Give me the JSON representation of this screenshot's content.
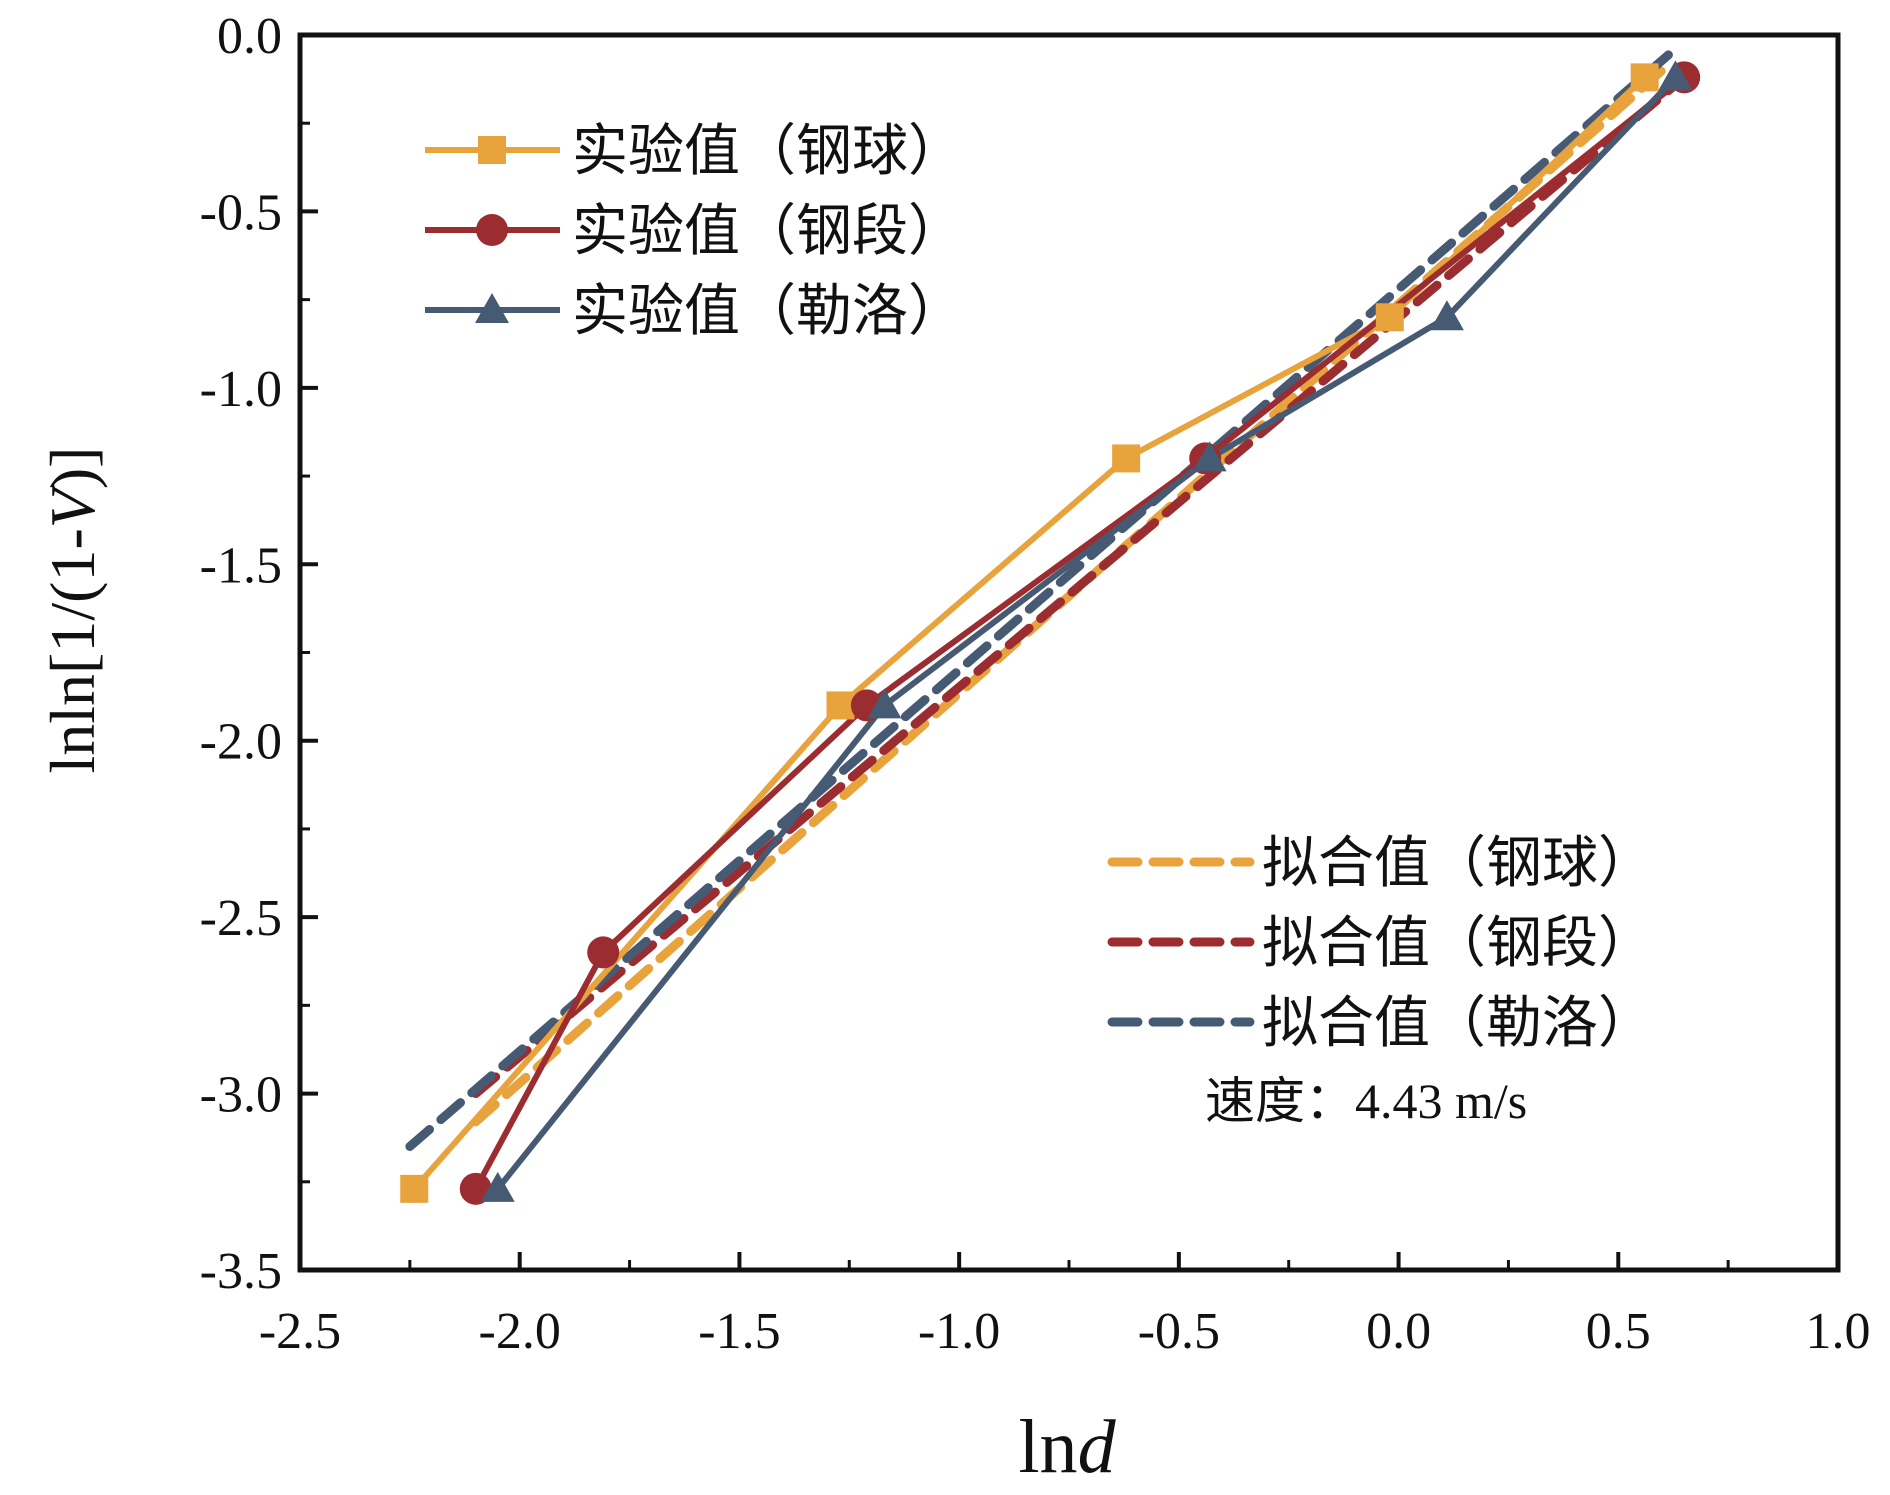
{
  "chart_data": {
    "type": "line",
    "xlabel": "lnd",
    "ylabel": "lnln[1/(1-V)]",
    "xlim": [
      -2.5,
      1.0
    ],
    "ylim": [
      -3.5,
      0.0
    ],
    "xticks": [
      -2.5,
      -2.0,
      -1.5,
      -1.0,
      -0.5,
      0.0,
      0.5,
      1.0
    ],
    "yticks": [
      0.0,
      -0.5,
      -1.0,
      -1.5,
      -2.0,
      -2.5,
      -3.0,
      -3.5
    ],
    "xtick_labels": [
      "-2.5",
      "-2.0",
      "-1.5",
      "-1.0",
      "-0.5",
      "0.0",
      "0.5",
      "1.0"
    ],
    "ytick_labels": [
      "0.0",
      "-0.5",
      "-1.0",
      "-1.5",
      "-2.0",
      "-2.5",
      "-3.0",
      "-3.5"
    ],
    "grid": false,
    "legend_experimental_position": "top-left",
    "legend_fit_position": "bottom-right",
    "annotation": "速度：4.43 m/s",
    "series": [
      {
        "name": "实验值（钢球）",
        "kind": "experimental",
        "marker": "square",
        "color": "#E8A33D",
        "x": [
          -2.24,
          -1.27,
          -0.62,
          -0.02,
          0.56
        ],
        "y": [
          -3.27,
          -1.9,
          -1.2,
          -0.8,
          -0.12
        ]
      },
      {
        "name": "实验值（钢段）",
        "kind": "experimental",
        "marker": "circle",
        "color": "#9B2D30",
        "x": [
          -2.1,
          -1.81,
          -1.21,
          -0.44,
          0.65
        ],
        "y": [
          -3.27,
          -2.6,
          -1.9,
          -1.2,
          -0.12
        ]
      },
      {
        "name": "实验值（勒洛）",
        "kind": "experimental",
        "marker": "triangle",
        "color": "#475A73",
        "x": [
          -2.05,
          -1.17,
          -0.43,
          0.11,
          0.63
        ],
        "y": [
          -3.27,
          -1.9,
          -1.2,
          -0.8,
          -0.12
        ]
      },
      {
        "name": "拟合值（钢球）",
        "kind": "fit",
        "color": "#E8A33D",
        "x": [
          -2.1,
          0.6
        ],
        "y": [
          -3.08,
          -0.1
        ]
      },
      {
        "name": "拟合值（钢段）",
        "kind": "fit",
        "color": "#9B2D30",
        "x": [
          -2.1,
          0.65
        ],
        "y": [
          -3.0,
          -0.12
        ]
      },
      {
        "name": "拟合值（勒洛）",
        "kind": "fit",
        "color": "#475A73",
        "x": [
          -2.25,
          0.62
        ],
        "y": [
          -3.15,
          -0.05
        ]
      }
    ]
  }
}
